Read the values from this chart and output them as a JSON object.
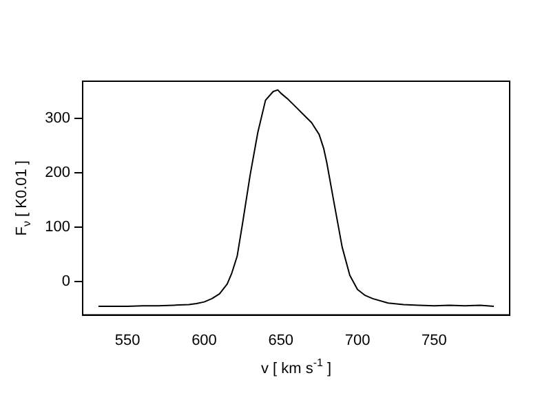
{
  "chart_data": {
    "type": "line",
    "xlabel": "v [ km s$^{-1}$ ]",
    "ylabel": "F$_{ν}$ [ K0.01 ]",
    "x": [
      531,
      540,
      550,
      560,
      570,
      580,
      590,
      595,
      600,
      605,
      610,
      615,
      618,
      621.5,
      625,
      630,
      635,
      640,
      645,
      648,
      650,
      655,
      660,
      665,
      670,
      675,
      678,
      680,
      685,
      690,
      695,
      700,
      705,
      710,
      720,
      730,
      740,
      750,
      760,
      770,
      780,
      789
    ],
    "series": [
      {
        "color": "#000000",
        "values": [
          -46,
          -46,
          -46,
          -45,
          -45,
          -44,
          -43,
          -41,
          -38,
          -32,
          -23,
          -5,
          15,
          46,
          106,
          196,
          274,
          333,
          349,
          352,
          346,
          334,
          320,
          306,
          292,
          270,
          244,
          218,
          140,
          63,
          11,
          -15,
          -26,
          -32,
          -40,
          -43,
          -44,
          -45,
          -44,
          -45,
          -44,
          -46
        ]
      }
    ],
    "xlim": [
      520.7,
      799.3
    ],
    "xticks": [
      550,
      600,
      650,
      700,
      750
    ],
    "ylim": [
      -62,
      368
    ],
    "yticks": [
      0,
      100,
      200,
      300
    ],
    "grid": false,
    "legend": false,
    "marker": "none",
    "line_style": "solid"
  }
}
